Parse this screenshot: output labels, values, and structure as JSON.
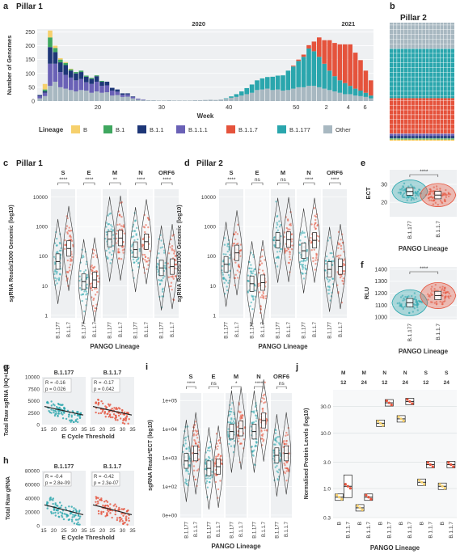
{
  "colors": {
    "B": "#f6d06c",
    "B.1": "#3fa75f",
    "B.1.1": "#1d3677",
    "B.1.1.1": "#6a61b6",
    "B.1.1.7": "#e5533c",
    "B.1.177": "#2aa6ad",
    "Other": "#a8b8c1",
    "panel_bg": "#eef0f2",
    "dark_teal": "#1f6f73"
  },
  "letters": {
    "a": "a",
    "b": "b",
    "c": "c",
    "d": "d",
    "e": "e",
    "f": "f",
    "g": "g",
    "h": "h",
    "i": "i",
    "j": "j"
  },
  "panel_titles": {
    "a": "Pillar 1",
    "b": "Pillar 2",
    "c": "Pillar 1",
    "d": "Pillar 2"
  },
  "chart_data": [
    {
      "id": "a",
      "type": "bar",
      "stacked": true,
      "title": "Pillar 1",
      "xlabel": "Week",
      "ylabel": "Number of Genomes",
      "year_labels": [
        "2020",
        "2021"
      ],
      "xticks": [
        "20",
        "30",
        "40",
        "50",
        "2",
        "4",
        "6"
      ],
      "yticks": [
        "0",
        "50",
        "100",
        "150",
        "200",
        "250"
      ],
      "ylim": [
        0,
        260
      ],
      "legend_title": "Lineage",
      "legend": [
        "B",
        "B.1",
        "B.1.1",
        "B.1.1.1",
        "B.1.1.7",
        "B.1.177",
        "Other"
      ],
      "series_order": [
        "Other",
        "B.1.177",
        "B.1.1.7",
        "B.1.1.1",
        "B.1.1",
        "B.1",
        "B"
      ],
      "bars": [
        {
          "Other": 10,
          "B.1.1.1": 8,
          "B.1.1": 4
        },
        {
          "Other": 18,
          "B.1.1.1": 12,
          "B.1.1": 6,
          "B.1": 6,
          "B": 20
        },
        {
          "Other": 55,
          "B.1.1.1": 80,
          "B.1.1": 60,
          "B.1": 35,
          "B": 25
        },
        {
          "Other": 70,
          "B.1.1.1": 65,
          "B.1.1": 42,
          "B.1": 15,
          "B": 8
        },
        {
          "Other": 50,
          "B.1.1.1": 55,
          "B.1.1": 35,
          "B.1": 10,
          "B": 5
        },
        {
          "Other": 45,
          "B.1.1.1": 50,
          "B.1.1": 35,
          "B.1": 8,
          "B": 3
        },
        {
          "Other": 40,
          "B.1.1.1": 45,
          "B.1.1": 25,
          "B.1": 5,
          "B": 2
        },
        {
          "Other": 35,
          "B.1.1.1": 40,
          "B.1.1": 25,
          "B.1": 5
        },
        {
          "Other": 40,
          "B.1.1.1": 40,
          "B.1.1": 25,
          "B.1": 5
        },
        {
          "Other": 38,
          "B.1.1.1": 30,
          "B.1.1": 20,
          "B.1": 4
        },
        {
          "Other": 30,
          "B.1.1.1": 32,
          "B.1.1": 18,
          "B.1": 4
        },
        {
          "Other": 35,
          "B.1.1.1": 35,
          "B.1.1": 20,
          "B.1": 3
        },
        {
          "Other": 30,
          "B.1.1.1": 25,
          "B.1.1": 15,
          "B.1": 3
        },
        {
          "Other": 32,
          "B.1.1.1": 25,
          "B.1.1": 13
        },
        {
          "Other": 20,
          "B.1.1.1": 18,
          "B.1.1": 10
        },
        {
          "Other": 22,
          "B.1.1.1": 12,
          "B.1.1": 8
        },
        {
          "Other": 15,
          "B.1.1.1": 8,
          "B.1.1": 5
        },
        {
          "Other": 16,
          "B.1.1.1": 8,
          "B.1.1": 4
        },
        {
          "Other": 10,
          "B.1.1.1": 5,
          "B.1.1": 2
        },
        {
          "Other": 6,
          "B.1.1.1": 3
        },
        {
          "Other": 4,
          "B.1.1.1": 2
        },
        {
          "Other": 3
        },
        {
          "Other": 3
        },
        {
          "Other": 2
        },
        {
          "Other": 2
        },
        {
          "Other": 3
        },
        {
          "Other": 2
        },
        {
          "Other": 2
        },
        {
          "Other": 2
        },
        {
          "Other": 2
        },
        {
          "Other": 3
        },
        {
          "Other": 3
        },
        {
          "Other": 4
        },
        {
          "Other": 5
        },
        {
          "Other": 4
        },
        {
          "Other": 6
        },
        {
          "Other": 8,
          "B.1.177": 2
        },
        {
          "Other": 12,
          "B.1.177": 5
        },
        {
          "Other": 15,
          "B.1.177": 10
        },
        {
          "Other": 20,
          "B.1.177": 15
        },
        {
          "Other": 25,
          "B.1.177": 22
        },
        {
          "Other": 30,
          "B.1.177": 30
        },
        {
          "Other": 40,
          "B.1.177": 35
        },
        {
          "Other": 42,
          "B.1.177": 40
        },
        {
          "Other": 45,
          "B.1.177": 42
        },
        {
          "Other": 40,
          "B.1.177": 48
        },
        {
          "Other": 42,
          "B.1.177": 50
        },
        {
          "Other": 38,
          "B.1.177": 55
        },
        {
          "Other": 40,
          "B.1.177": 70
        },
        {
          "Other": 45,
          "B.1.177": 80,
          "B.1.1.7": 3
        },
        {
          "Other": 50,
          "B.1.177": 95,
          "B.1.1.7": 5
        },
        {
          "Other": 50,
          "B.1.177": 110,
          "B.1.1.7": 8
        },
        {
          "Other": 55,
          "B.1.177": 135,
          "B.1.1.7": 12
        },
        {
          "Other": 55,
          "B.1.177": 125,
          "B.1.1.7": 35
        },
        {
          "Other": 50,
          "B.1.177": 110,
          "B.1.1.7": 70
        },
        {
          "Other": 45,
          "B.1.177": 90,
          "B.1.1.7": 85
        },
        {
          "Other": 40,
          "B.1.177": 70,
          "B.1.1.7": 110
        },
        {
          "Other": 35,
          "B.1.177": 55,
          "B.1.1.7": 120
        },
        {
          "Other": 30,
          "B.1.177": 45,
          "B.1.1.7": 130
        },
        {
          "Other": 25,
          "B.1.177": 40,
          "B.1.1.7": 140
        },
        {
          "Other": 25,
          "B.1.177": 30,
          "B.1.1.7": 150
        },
        {
          "Other": 20,
          "B.1.177": 25,
          "B.1.1.7": 130
        },
        {
          "Other": 18,
          "B.1.177": 20,
          "B.1.1.7": 110
        },
        {
          "Other": 15,
          "B.1.177": 15,
          "B.1.1.7": 80
        },
        {
          "Other": 10,
          "B.1.177": 10,
          "B.1.1.7": 55
        }
      ]
    },
    {
      "id": "b",
      "type": "heatmap",
      "title": "Pillar 2",
      "rows_by_lineage": {
        "Other": 22,
        "B.1.177": 42,
        "B.1.1.7": 30,
        "B.1.1.1": 2,
        "B.1.1": 2,
        "B.1": 1,
        "B": 1
      }
    },
    {
      "id": "c",
      "type": "violin",
      "title": "Pillar 1",
      "ylabel": "sgRNA Reads/1000 Genomic (log10)",
      "xlabel": "PANGO Lineage",
      "yticks": [
        "1",
        "10",
        "100",
        "1000",
        "10000"
      ],
      "groups": [
        "S",
        "E",
        "M",
        "N",
        "ORF6"
      ],
      "categories": [
        "B.1.177",
        "B.1.1.7"
      ],
      "significance": [
        "****",
        "****",
        "**",
        "****",
        "****"
      ],
      "medians": [
        [
          70,
          220
        ],
        [
          12,
          14
        ],
        [
          500,
          550
        ],
        [
          200,
          400
        ],
        [
          40,
          45
        ]
      ]
    },
    {
      "id": "d",
      "type": "violin",
      "title": "Pillar 2",
      "ylabel": "sgRNA Reads/1000 Genomic (log10)",
      "xlabel": "PANGO Lineage",
      "yticks": [
        "1",
        "10",
        "100",
        "1000",
        "10000"
      ],
      "groups": [
        "S",
        "E",
        "M",
        "N",
        "ORF6"
      ],
      "categories": [
        "B.1.177",
        "B.1.1.7"
      ],
      "significance": [
        "****",
        "ns",
        "ns",
        "****",
        "****"
      ],
      "medians": [
        [
          55,
          150
        ],
        [
          10,
          11
        ],
        [
          450,
          480
        ],
        [
          180,
          450
        ],
        [
          35,
          45
        ]
      ]
    },
    {
      "id": "e",
      "type": "violin",
      "ylabel": "ECT",
      "xlabel": "PANGO Lineage",
      "yticks": [
        "20",
        "30"
      ],
      "categories": [
        "B.1.177",
        "B.1.1.7"
      ],
      "significance": "****",
      "medians": [
        26,
        24
      ]
    },
    {
      "id": "f",
      "type": "violin",
      "ylabel": "RLU",
      "xlabel": "PANGO Lineage",
      "yticks": [
        "1000",
        "1100",
        "1200",
        "1300",
        "1400"
      ],
      "categories": [
        "B.1.177",
        "B.1.1.7"
      ],
      "significance": "****",
      "medians": [
        1120,
        1180
      ]
    },
    {
      "id": "g",
      "type": "scatter",
      "ylabel": "Total Raw sgRNA (HQ+LQ)",
      "xlabel": "E Cycle Threshold",
      "yticks": [
        "0",
        "2500",
        "5000",
        "7500",
        "10000"
      ],
      "xticks": [
        "15",
        "20",
        "25",
        "30",
        "35"
      ],
      "facets": [
        {
          "name": "B.1.177",
          "R": "R = -0.16",
          "p": "p = 0.026"
        },
        {
          "name": "B.1.1.7",
          "R": "R = -0.17",
          "p": "p = 0.042"
        }
      ]
    },
    {
      "id": "h",
      "type": "scatter",
      "ylabel": "Total Raw gRNA",
      "xlabel": "E Cycle Threshold",
      "yticks": [
        "0",
        "20000",
        "40000",
        "60000",
        "80000"
      ],
      "xticks": [
        "15",
        "20",
        "25",
        "30",
        "35"
      ],
      "facets": [
        {
          "name": "B.1.177",
          "R": "R = -0.4",
          "p": "p = 2.8e-09"
        },
        {
          "name": "B.1.1.7",
          "R": "R = -0.42",
          "p": "p = 2.3e-07"
        }
      ]
    },
    {
      "id": "i",
      "type": "violin",
      "ylabel": "sgRNA Reads*ECT (log10)",
      "xlabel": "PANGO Lineage",
      "yticks": [
        "0e+00",
        "1e+02",
        "1e+03",
        "1e+04",
        "1e+05"
      ],
      "groups": [
        "S",
        "E",
        "M",
        "N",
        "ORF6"
      ],
      "categories": [
        "B.1.177",
        "B.1.1.7"
      ],
      "significance": [
        "****",
        "ns",
        "*",
        "****",
        "ns"
      ],
      "medians": [
        [
          600,
          1200
        ],
        [
          300,
          350
        ],
        [
          9000,
          12000
        ],
        [
          9000,
          25000
        ],
        [
          1000,
          1200
        ]
      ]
    },
    {
      "id": "j",
      "type": "box",
      "ylabel": "Normalised Protein Levels (log10)",
      "xlabel": "PANGO Lineage",
      "yticks": [
        "0.3",
        "1.0",
        "3.0",
        "10.0",
        "30.0"
      ],
      "header_top": [
        "M",
        "M",
        "N",
        "N",
        "S",
        "S"
      ],
      "header_bottom": [
        "12",
        "24",
        "12",
        "24",
        "12",
        "24"
      ],
      "categories": [
        "B",
        "B.1.1.7"
      ],
      "medians": [
        [
          0.7,
          1.1
        ],
        [
          0.45,
          0.7
        ],
        [
          15,
          35
        ],
        [
          18,
          37
        ],
        [
          1.3,
          2.7
        ],
        [
          1.1,
          2.7
        ]
      ]
    }
  ]
}
